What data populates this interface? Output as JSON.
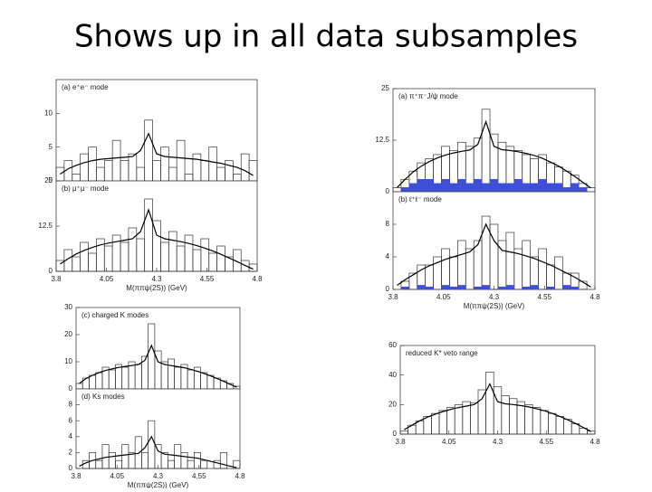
{
  "title": "Shows up in all data subsamples",
  "chart_data": [
    {
      "type": "histogram",
      "label": "(a) e⁺e⁻ mode",
      "bins": [
        3.8,
        3.84,
        3.88,
        3.92,
        3.96,
        4.0,
        4.04,
        4.08,
        4.12,
        4.16,
        4.2,
        4.24,
        4.28,
        4.32,
        4.36,
        4.4,
        4.44,
        4.48,
        4.52,
        4.56,
        4.6,
        4.64,
        4.68,
        4.72,
        4.76,
        4.8
      ],
      "values": [
        2,
        3,
        1,
        4,
        5,
        2,
        3,
        6,
        3,
        4,
        2,
        9,
        3,
        5,
        2,
        6,
        1,
        4,
        3,
        5,
        2,
        3,
        1,
        4,
        3
      ],
      "fit": [
        1,
        1.8,
        2.3,
        2.7,
        3,
        3.2,
        3.3,
        3.4,
        3.5,
        3.6,
        4.5,
        7,
        4,
        3.6,
        3.5,
        3.4,
        3.3,
        3.2,
        3,
        2.8,
        2.6,
        2.3,
        2,
        1.5,
        0.8
      ],
      "xlim": [
        3.8,
        4.8
      ],
      "ylim": [
        0,
        15
      ],
      "yticks": [
        0,
        5,
        10
      ],
      "color": "#333333",
      "fit_color": "#000000"
    },
    {
      "type": "histogram",
      "label": "(b) μ⁺μ⁻ mode",
      "bins": [
        3.8,
        3.84,
        3.88,
        3.92,
        3.96,
        4.0,
        4.04,
        4.08,
        4.12,
        4.16,
        4.2,
        4.24,
        4.28,
        4.32,
        4.36,
        4.4,
        4.44,
        4.48,
        4.52,
        4.56,
        4.6,
        4.64,
        4.68,
        4.72,
        4.76,
        4.8
      ],
      "values": [
        3,
        6,
        4,
        8,
        5,
        9,
        7,
        10,
        8,
        12,
        9,
        20,
        14,
        8,
        11,
        7,
        10,
        6,
        9,
        5,
        7,
        4,
        6,
        3,
        2
      ],
      "fit": [
        2,
        3.5,
        4.8,
        5.8,
        6.6,
        7.3,
        7.8,
        8.2,
        8.6,
        9,
        11,
        17,
        10,
        9,
        8.6,
        8.2,
        7.7,
        7.1,
        6.4,
        5.6,
        4.7,
        3.7,
        2.7,
        1.6,
        0.6
      ],
      "xlim": [
        3.8,
        4.8
      ],
      "ylim": [
        0,
        25
      ],
      "yticks": [
        0,
        12.5,
        25
      ],
      "xticks": [
        3.8,
        4.05,
        4.3,
        4.55,
        4.8
      ],
      "xlabel": "M(ππψ(2S)) (GeV)",
      "color": "#333333",
      "fit_color": "#000000"
    },
    {
      "type": "histogram",
      "label": "(c) charged K modes",
      "bins": [
        3.8,
        3.84,
        3.88,
        3.92,
        3.96,
        4.0,
        4.04,
        4.08,
        4.12,
        4.16,
        4.2,
        4.24,
        4.28,
        4.32,
        4.36,
        4.4,
        4.44,
        4.48,
        4.52,
        4.56,
        4.6,
        4.64,
        4.68,
        4.72,
        4.76,
        4.8
      ],
      "values": [
        2,
        4,
        5,
        6,
        8,
        7,
        9,
        8,
        10,
        9,
        12,
        24,
        14,
        10,
        11,
        8,
        9,
        7,
        8,
        6,
        5,
        4,
        3,
        2,
        1
      ],
      "fit": [
        2,
        3.8,
        5,
        6,
        6.8,
        7.4,
        7.9,
        8.3,
        8.6,
        9,
        10.5,
        16,
        10,
        9,
        8.6,
        8.2,
        7.8,
        7.2,
        6.5,
        5.7,
        4.8,
        3.8,
        2.8,
        1.7,
        0.6
      ],
      "xlim": [
        3.8,
        4.8
      ],
      "ylim": [
        0,
        30
      ],
      "yticks": [
        0,
        10,
        20,
        30
      ],
      "color": "#333333",
      "fit_color": "#000000"
    },
    {
      "type": "histogram",
      "label": "(d) Ks modes",
      "bins": [
        3.8,
        3.84,
        3.88,
        3.92,
        3.96,
        4.0,
        4.04,
        4.08,
        4.12,
        4.16,
        4.2,
        4.24,
        4.28,
        4.32,
        4.36,
        4.4,
        4.44,
        4.48,
        4.52,
        4.56,
        4.6,
        4.64,
        4.68,
        4.72,
        4.76,
        4.8
      ],
      "values": [
        0,
        1,
        2,
        1,
        3,
        2,
        1,
        3,
        2,
        4,
        2,
        6,
        3,
        2,
        1,
        3,
        2,
        1,
        2,
        1,
        0,
        1,
        2,
        0,
        1
      ],
      "fit": [
        0.3,
        0.7,
        1,
        1.2,
        1.4,
        1.5,
        1.6,
        1.7,
        1.8,
        1.9,
        2.6,
        4,
        2.2,
        1.8,
        1.7,
        1.6,
        1.5,
        1.4,
        1.3,
        1.1,
        0.9,
        0.7,
        0.5,
        0.3,
        0.1
      ],
      "xlim": [
        3.8,
        4.8
      ],
      "ylim": [
        0,
        10
      ],
      "yticks": [
        0,
        2,
        4,
        6,
        8
      ],
      "xticks": [
        3.8,
        4.05,
        4.3,
        4.55,
        4.8
      ],
      "xlabel": "M(ππψ(2S)) (GeV)",
      "color": "#333333",
      "fit_color": "#000000"
    },
    {
      "type": "histogram",
      "label": "(a) π⁺π⁻J/ψ mode",
      "bins": [
        3.8,
        3.84,
        3.88,
        3.92,
        3.96,
        4.0,
        4.04,
        4.08,
        4.12,
        4.16,
        4.2,
        4.24,
        4.28,
        4.32,
        4.36,
        4.4,
        4.44,
        4.48,
        4.52,
        4.56,
        4.6,
        4.64,
        4.68,
        4.72,
        4.76,
        4.8
      ],
      "values": [
        1,
        3,
        5,
        7,
        8,
        9,
        11,
        10,
        12,
        11,
        13,
        20,
        14,
        12,
        11,
        10,
        9,
        8,
        9,
        7,
        6,
        5,
        4,
        2,
        1
      ],
      "background": [
        0,
        1,
        2,
        3,
        3,
        2,
        3,
        2,
        3,
        2,
        3,
        2,
        3,
        2,
        2,
        3,
        2,
        2,
        3,
        2,
        2,
        1,
        2,
        1,
        0
      ],
      "fit": [
        1,
        3,
        4.8,
        6.2,
        7.3,
        8.2,
        8.9,
        9.4,
        9.8,
        10.1,
        11.5,
        17,
        11,
        10.2,
        10,
        9.7,
        9.3,
        8.8,
        8.1,
        7.2,
        6.2,
        5,
        3.7,
        2.3,
        0.9
      ],
      "xlim": [
        3.8,
        4.8
      ],
      "ylim": [
        0,
        25
      ],
      "yticks": [
        0,
        12.5,
        25
      ],
      "color": "#333333",
      "background_color": "#3f4fd8",
      "fit_color": "#000000"
    },
    {
      "type": "histogram",
      "label": "(b) ℓ⁺ℓ⁻ mode",
      "bins": [
        3.8,
        3.84,
        3.88,
        3.92,
        3.96,
        4.0,
        4.04,
        4.08,
        4.12,
        4.16,
        4.2,
        4.24,
        4.28,
        4.32,
        4.36,
        4.4,
        4.44,
        4.48,
        4.52,
        4.56,
        4.6,
        4.64,
        4.68,
        4.72,
        4.76,
        4.8
      ],
      "values": [
        0,
        1,
        2,
        3,
        3,
        4,
        5,
        4,
        6,
        5,
        6,
        9,
        8,
        6,
        7,
        5,
        6,
        4,
        5,
        3,
        4,
        2,
        2,
        1,
        0
      ],
      "background": [
        0,
        0.3,
        0,
        0.5,
        0.3,
        0,
        0.5,
        0.3,
        0.5,
        0,
        0.3,
        0.5,
        0,
        0.3,
        0.5,
        0,
        0.3,
        0.5,
        0,
        0.3,
        0,
        0.5,
        0.3,
        0,
        0
      ],
      "fit": [
        0.5,
        1.2,
        1.8,
        2.4,
        2.9,
        3.3,
        3.7,
        4,
        4.3,
        4.6,
        5.5,
        8,
        6,
        4.8,
        4.6,
        4.4,
        4.1,
        3.8,
        3.4,
        3,
        2.5,
        2,
        1.5,
        0.9,
        0.3
      ],
      "xlim": [
        3.8,
        4.8
      ],
      "ylim": [
        0,
        12
      ],
      "yticks": [
        0,
        4,
        8
      ],
      "xticks": [
        3.8,
        4.05,
        4.3,
        4.55,
        4.8
      ],
      "xlabel": "M(ππψ(2S)) (GeV)",
      "color": "#333333",
      "background_color": "#3f4fd8",
      "fit_color": "#000000"
    },
    {
      "type": "histogram",
      "label": "reduced K* veto range",
      "bins": [
        3.8,
        3.84,
        3.88,
        3.92,
        3.96,
        4.0,
        4.04,
        4.08,
        4.12,
        4.16,
        4.2,
        4.24,
        4.28,
        4.32,
        4.36,
        4.4,
        4.44,
        4.48,
        4.52,
        4.56,
        4.6,
        4.64,
        4.68,
        4.72,
        4.76,
        4.8
      ],
      "values": [
        2,
        6,
        9,
        12,
        14,
        16,
        18,
        20,
        22,
        21,
        30,
        42,
        32,
        26,
        24,
        22,
        20,
        18,
        16,
        14,
        12,
        10,
        7,
        4,
        2
      ],
      "fit": [
        3,
        6,
        9,
        11.5,
        13.5,
        15.3,
        16.8,
        18,
        19,
        20,
        24,
        34,
        22,
        20.5,
        20,
        19.3,
        18.4,
        17.2,
        15.8,
        14,
        12,
        9.7,
        7.2,
        4.5,
        1.7
      ],
      "xlim": [
        3.8,
        4.8
      ],
      "ylim": [
        0,
        60
      ],
      "yticks": [
        0,
        20,
        40,
        60
      ],
      "xticks": [
        3.8,
        4.05,
        4.3,
        4.55,
        4.8
      ],
      "color": "#333333",
      "fit_color": "#000000"
    }
  ]
}
